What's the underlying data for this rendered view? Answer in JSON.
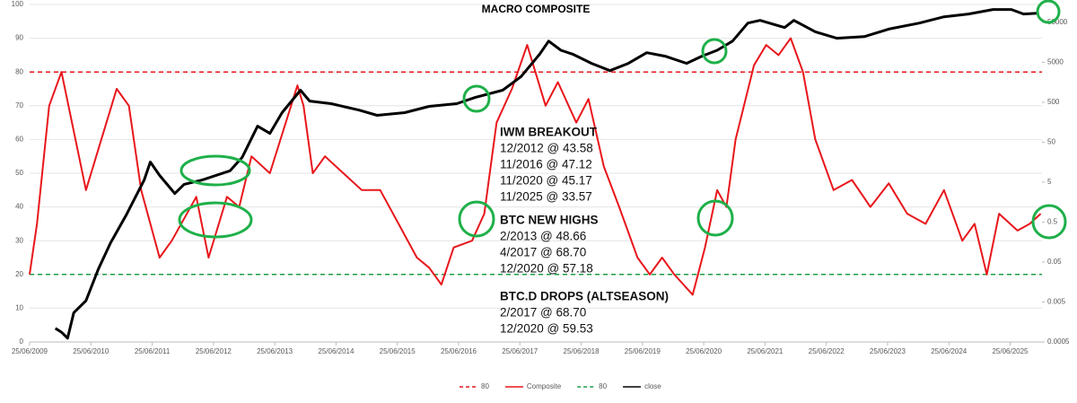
{
  "chart_data": {
    "type": "line",
    "title": "MACRO COMPOSITE",
    "xlim": [
      2009.48,
      2026.0
    ],
    "xticks": [
      {
        "value": 2009.48,
        "label": "25/06/2009"
      },
      {
        "value": 2010.48,
        "label": "25/06/2010"
      },
      {
        "value": 2011.48,
        "label": "25/06/2011"
      },
      {
        "value": 2012.48,
        "label": "25/06/2012"
      },
      {
        "value": 2013.48,
        "label": "25/06/2013"
      },
      {
        "value": 2014.48,
        "label": "25/06/2014"
      },
      {
        "value": 2015.48,
        "label": "25/06/2015"
      },
      {
        "value": 2016.48,
        "label": "25/06/2016"
      },
      {
        "value": 2017.48,
        "label": "25/06/2017"
      },
      {
        "value": 2018.48,
        "label": "25/06/2018"
      },
      {
        "value": 2019.48,
        "label": "25/06/2019"
      },
      {
        "value": 2020.48,
        "label": "25/06/2020"
      },
      {
        "value": 2021.48,
        "label": "25/06/2021"
      },
      {
        "value": 2022.48,
        "label": "25/06/2022"
      },
      {
        "value": 2023.48,
        "label": "25/06/2023"
      },
      {
        "value": 2024.48,
        "label": "25/06/2024"
      },
      {
        "value": 2025.48,
        "label": "25/06/2025"
      }
    ],
    "ylim": [
      0,
      100
    ],
    "yticks": [
      0,
      10,
      20,
      30,
      40,
      50,
      60,
      70,
      80,
      90,
      100
    ],
    "y2lim": [
      0.0005,
      140000
    ],
    "y2log": true,
    "y2ticks": [
      0.0005,
      0.005,
      0.05,
      0.5,
      5,
      50,
      500,
      5000,
      50000
    ],
    "grid": true,
    "ref_lines": [
      {
        "name": "80",
        "value": 80,
        "color": "#e8161b"
      },
      {
        "name": "80",
        "value": 20,
        "color": "#1f9e48"
      }
    ],
    "series": [
      {
        "name": "Composite",
        "color": "#e8161b",
        "x": [
          2009.48,
          2009.6,
          2009.8,
          2010.0,
          2010.4,
          2010.9,
          2011.1,
          2011.3,
          2011.6,
          2011.8,
          2012.2,
          2012.4,
          2012.7,
          2012.9,
          2013.1,
          2013.4,
          2013.85,
          2013.95,
          2014.1,
          2014.3,
          2014.6,
          2014.9,
          2015.2,
          2015.5,
          2015.8,
          2016.0,
          2016.2,
          2016.4,
          2016.7,
          2016.9,
          2017.1,
          2017.35,
          2017.6,
          2017.9,
          2018.1,
          2018.4,
          2018.6,
          2018.85,
          2019.1,
          2019.4,
          2019.6,
          2019.8,
          2020.0,
          2020.3,
          2020.5,
          2020.7,
          2020.85,
          2021.0,
          2021.3,
          2021.5,
          2021.7,
          2021.9,
          2022.1,
          2022.3,
          2022.6,
          2022.9,
          2023.2,
          2023.5,
          2023.8,
          2024.1,
          2024.4,
          2024.7,
          2024.9,
          2025.1,
          2025.3,
          2025.6,
          2025.8,
          2025.98
        ],
        "values": [
          20,
          35,
          70,
          80,
          45,
          75,
          70,
          45,
          25,
          30,
          43,
          25,
          43,
          40,
          55,
          50,
          76,
          70,
          50,
          55,
          50,
          45,
          45,
          35,
          25,
          22,
          17,
          28,
          30,
          38,
          65,
          75,
          88,
          70,
          77,
          65,
          72,
          52,
          40,
          25,
          20,
          25,
          20,
          14,
          28,
          45,
          40,
          60,
          82,
          88,
          85,
          90,
          80,
          60,
          45,
          48,
          40,
          47,
          38,
          35,
          45,
          30,
          35,
          20,
          38,
          33,
          35,
          38
        ]
      },
      {
        "name": "close",
        "color": "#000000",
        "axis": "y2",
        "x": [
          2009.9,
          2010.0,
          2010.1,
          2010.2,
          2010.4,
          2010.6,
          2010.8,
          2011.05,
          2011.35,
          2011.45,
          2011.6,
          2011.85,
          2012.0,
          2012.3,
          2012.75,
          2012.95,
          2013.2,
          2013.4,
          2013.6,
          2013.9,
          2014.05,
          2014.4,
          2014.85,
          2015.15,
          2015.6,
          2016.0,
          2016.45,
          2016.75,
          2017.2,
          2017.5,
          2017.8,
          2017.95,
          2018.15,
          2018.35,
          2018.65,
          2018.95,
          2019.25,
          2019.55,
          2019.85,
          2020.2,
          2020.45,
          2020.7,
          2020.95,
          2021.2,
          2021.4,
          2021.8,
          2021.95,
          2022.3,
          2022.65,
          2023.1,
          2023.5,
          2024.0,
          2024.4,
          2024.8,
          2025.2,
          2025.5,
          2025.7,
          2025.95
        ],
        "values": [
          0.0011,
          0.00088,
          0.00062,
          0.0027,
          0.0054,
          0.033,
          0.15,
          0.72,
          5.7,
          16,
          7.4,
          2.6,
          4.4,
          5.7,
          9.6,
          21,
          126,
          83,
          275,
          1000,
          535,
          460,
          320,
          235,
          275,
          395,
          460,
          660,
          1000,
          2200,
          7900,
          17000,
          10000,
          7900,
          4700,
          3100,
          4700,
          8700,
          7100,
          4700,
          7100,
          10000,
          17000,
          48000,
          56000,
          37000,
          56000,
          29000,
          20000,
          22000,
          34000,
          48000,
          69000,
          81000,
          105000,
          105000,
          81000,
          85000
        ]
      }
    ],
    "annotations": [
      {
        "heading": "IWM BREAKOUT",
        "lines": [
          "12/2012 @ 43.58",
          "11/2016 @ 47.12",
          "11/2020 @ 45.17",
          "11/2025 @ 33.57"
        ]
      },
      {
        "heading": "BTC NEW HIGHS",
        "lines": [
          "2/2013 @ 48.66",
          "4/2017 @ 68.70",
          "12/2020 @ 57.18"
        ]
      },
      {
        "heading": "BTC.D DROPS (ALTSEASON)",
        "lines": [
          "2/2017 @ 68.70",
          "12/2020 @ 59.53"
        ]
      }
    ]
  }
}
